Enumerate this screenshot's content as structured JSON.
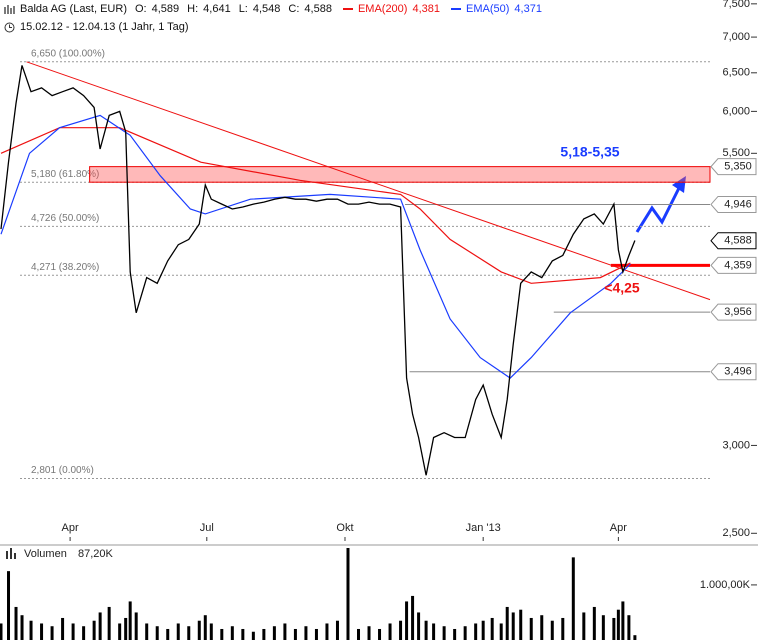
{
  "chart_data": [
    {
      "type": "line",
      "title": "Balda AG (Last, EUR)",
      "subtitle": "15.02.12 - 12.04.13 (1 Jahr, 1 Tag)",
      "stats": [
        {
          "name": "O:",
          "label": "4,589"
        },
        {
          "name": "H:",
          "label": "4,641"
        },
        {
          "name": "L:",
          "label": "4,548"
        },
        {
          "name": "C:",
          "label": "4,588"
        }
      ],
      "color": "#000000",
      "x": [
        0,
        5,
        10,
        14,
        20,
        27,
        34,
        41,
        48,
        55,
        62,
        66,
        72,
        79,
        83,
        86,
        90,
        97,
        104,
        111,
        118,
        125,
        132,
        136,
        140,
        147,
        154,
        161,
        168,
        175,
        182,
        189,
        196,
        203,
        210,
        217,
        224,
        231,
        238,
        245,
        252,
        259,
        266,
        270,
        274,
        278,
        283,
        288,
        295,
        302,
        309,
        316,
        321,
        327,
        333,
        337,
        341,
        346,
        353,
        360,
        367,
        374,
        381,
        388,
        395,
        401,
        408,
        411,
        414,
        418,
        422
      ],
      "values": [
        4.7,
        5.4,
        6.1,
        6.6,
        6.25,
        6.3,
        6.2,
        6.25,
        6.3,
        6.2,
        6.05,
        5.55,
        5.95,
        6.0,
        5.75,
        4.3,
        3.95,
        4.25,
        4.2,
        4.4,
        4.55,
        4.6,
        4.75,
        5.15,
        5.0,
        4.95,
        4.9,
        4.92,
        4.95,
        4.97,
        5.0,
        5.02,
        5.0,
        5.0,
        4.98,
        5.0,
        5.0,
        4.95,
        4.95,
        4.97,
        4.95,
        4.95,
        4.92,
        3.45,
        3.2,
        3.05,
        2.82,
        3.05,
        3.08,
        3.05,
        3.05,
        3.3,
        3.4,
        3.2,
        3.05,
        3.3,
        3.7,
        4.2,
        4.3,
        4.25,
        4.4,
        4.45,
        4.65,
        4.8,
        4.85,
        4.75,
        4.95,
        4.5,
        4.3,
        4.45,
        4.59
      ],
      "series": [
        {
          "name": "EMA(200)",
          "last_label": "4,381",
          "color": "#ee1111",
          "x": [
            0,
            39,
            79,
            133,
            199,
            266,
            279,
            299,
            333,
            353,
            399,
            419
          ],
          "values": [
            5.5,
            5.8,
            5.8,
            5.4,
            5.2,
            5.05,
            4.9,
            4.6,
            4.3,
            4.2,
            4.25,
            4.381
          ]
        },
        {
          "name": "EMA(50)",
          "last_label": "4,371",
          "color": "#1a3cff",
          "x": [
            0,
            19,
            39,
            66,
            86,
            106,
            126,
            136,
            166,
            219,
            266,
            279,
            299,
            319,
            339,
            353,
            379,
            406,
            419
          ],
          "values": [
            4.65,
            5.5,
            5.8,
            5.95,
            5.71,
            5.25,
            4.9,
            4.85,
            5.0,
            5.05,
            5.0,
            4.5,
            3.9,
            3.6,
            3.45,
            3.6,
            3.95,
            4.2,
            4.371
          ]
        }
      ],
      "trendline": {
        "x": [
          17,
          472
        ],
        "values": [
          6.65,
          4.06
        ],
        "color": "#ee1111"
      },
      "zone": {
        "from": 5.18,
        "to": 5.35,
        "start": 59
      },
      "fib_levels": [
        {
          "value": 6.65,
          "label": "6,650 (100.00%)"
        },
        {
          "value": 5.18,
          "label": "5,180 (61.80%)"
        },
        {
          "value": 4.726,
          "label": "4,726 (50.00%)"
        },
        {
          "value": 4.271,
          "label": "4,271 (38.20%)"
        },
        {
          "value": 2.801,
          "label": "2,801 (0.00%)"
        }
      ],
      "levels": [
        {
          "value": 5.35,
          "label": "5,350"
        },
        {
          "value": 4.946,
          "label": "4,946",
          "start": 269
        },
        {
          "value": 4.359,
          "label": "4,359",
          "start": 406,
          "color": "#ff0000"
        },
        {
          "value": 3.956,
          "label": "3,956",
          "start": 368
        },
        {
          "value": 3.496,
          "label": "3,496",
          "start": 272
        }
      ],
      "current": {
        "value": 4.588,
        "label": "4,588"
      },
      "annotations": [
        {
          "text": "5,18-5,35",
          "color": "#1a3cff"
        },
        {
          "text": "<4,25",
          "color": "#ee1111"
        }
      ],
      "xlim": [
        0,
        472
      ],
      "xticks": [
        {
          "value": 46,
          "label": "Apr"
        },
        {
          "value": 137,
          "label": "Jul"
        },
        {
          "value": 229,
          "label": "Okt"
        },
        {
          "value": 321,
          "label": "Jan '13"
        },
        {
          "value": 411,
          "label": "Apr"
        }
      ],
      "ylim": [
        2.44,
        7.56
      ],
      "log_scale": true,
      "yticks": [
        {
          "value": 7.5,
          "label": "7,500"
        },
        {
          "value": 7,
          "label": "7,000"
        },
        {
          "value": 6.5,
          "label": "6,500"
        },
        {
          "value": 6,
          "label": "6,000"
        },
        {
          "value": 5.5,
          "label": "5,500"
        },
        {
          "value": 3,
          "label": "3,000"
        },
        {
          "value": 2.5,
          "label": "2,500"
        }
      ]
    },
    {
      "type": "bar",
      "title": "Volumen",
      "last_label": "87,20K",
      "color": "#000000",
      "x": [
        0,
        5,
        10,
        14,
        20,
        27,
        34,
        41,
        48,
        55,
        62,
        66,
        72,
        79,
        83,
        86,
        90,
        97,
        104,
        111,
        118,
        125,
        132,
        136,
        140,
        147,
        154,
        161,
        168,
        175,
        182,
        189,
        196,
        203,
        210,
        217,
        224,
        231,
        238,
        245,
        252,
        259,
        266,
        270,
        274,
        278,
        283,
        288,
        295,
        302,
        309,
        316,
        321,
        327,
        333,
        337,
        341,
        346,
        353,
        360,
        367,
        374,
        381,
        388,
        395,
        401,
        408,
        411,
        414,
        418,
        422
      ],
      "values": [
        300,
        1250,
        600,
        450,
        350,
        300,
        250,
        400,
        300,
        250,
        350,
        500,
        600,
        300,
        400,
        700,
        500,
        300,
        250,
        200,
        300,
        250,
        350,
        450,
        300,
        200,
        250,
        200,
        150,
        200,
        250,
        300,
        200,
        250,
        200,
        300,
        350,
        1670,
        200,
        250,
        200,
        300,
        350,
        700,
        800,
        500,
        350,
        300,
        250,
        200,
        250,
        300,
        350,
        400,
        300,
        600,
        500,
        550,
        400,
        450,
        350,
        400,
        1500,
        500,
        600,
        450,
        400,
        550,
        700,
        450,
        87.2
      ],
      "ylim": [
        0,
        1670
      ],
      "yticks": [
        {
          "value": 1000,
          "label": "1.000,00K"
        }
      ]
    }
  ]
}
